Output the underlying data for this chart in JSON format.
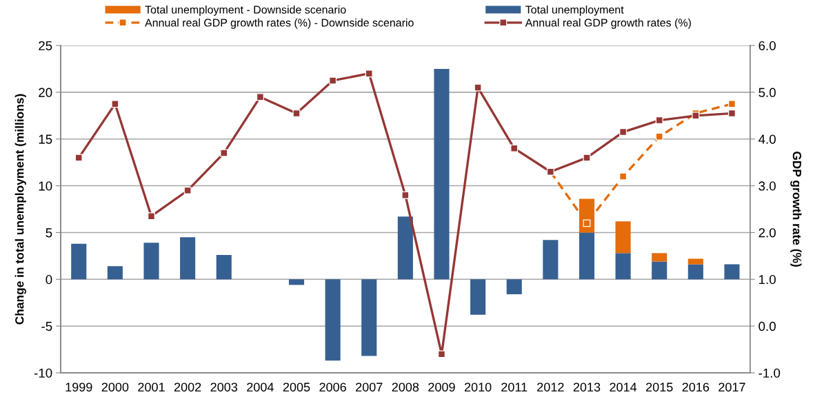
{
  "chart_data": {
    "type": "bar",
    "stacked": true,
    "categories": [
      "1999",
      "2000",
      "2001",
      "2002",
      "2003",
      "2004",
      "2005",
      "2006",
      "2007",
      "2008",
      "2009",
      "2010",
      "2011",
      "2012",
      "2013",
      "2014",
      "2015",
      "2016",
      "2017"
    ],
    "series": [
      {
        "name": "Total unemployment",
        "color": "#366092",
        "values": [
          3.8,
          1.4,
          3.9,
          4.5,
          2.6,
          0,
          -0.6,
          -8.7,
          -8.2,
          6.7,
          22.5,
          -3.8,
          -1.6,
          4.2,
          5.0,
          2.8,
          1.9,
          1.6,
          1.6
        ]
      },
      {
        "name": "Total unemployment - Downside scenario",
        "color": "#e46c0a",
        "values": [
          null,
          null,
          null,
          null,
          null,
          null,
          null,
          null,
          null,
          null,
          null,
          null,
          null,
          null,
          3.6,
          3.4,
          0.9,
          0.6,
          null
        ]
      },
      {
        "name": "Annual real GDP growth rates (%) - Downside scenario",
        "type": "line",
        "axis": "y2",
        "color": "#e46c0a",
        "marker": "square",
        "line_style": "dashed",
        "values": [
          null,
          null,
          null,
          null,
          null,
          null,
          null,
          null,
          null,
          null,
          null,
          null,
          null,
          3.3,
          2.2,
          3.2,
          4.05,
          4.55,
          4.75
        ]
      },
      {
        "name": "Annual real GDP growth rates (%)",
        "type": "line",
        "axis": "y2",
        "color": "#953735",
        "marker": "square",
        "line_style": "solid",
        "values": [
          3.6,
          4.75,
          2.35,
          2.9,
          3.7,
          4.9,
          4.55,
          5.25,
          5.4,
          2.8,
          -0.6,
          5.1,
          3.8,
          3.3,
          3.6,
          4.15,
          4.4,
          4.5,
          4.55
        ]
      }
    ],
    "ylabel": "Change in total unemployment (millions)",
    "y2label": "GDP growth rate (%)",
    "ylim": [
      -10,
      25
    ],
    "yticks": [
      -10,
      -5,
      0,
      5,
      10,
      15,
      20,
      25
    ],
    "y2lim": [
      -1,
      6
    ],
    "y2ticks": [
      {
        "value": -1,
        "label": "-1.0"
      },
      {
        "value": 0,
        "label": "0.0"
      },
      {
        "value": 1,
        "label": "1.0"
      },
      {
        "value": 2,
        "label": "2.0"
      },
      {
        "value": 3,
        "label": "3.0"
      },
      {
        "value": 4,
        "label": "4.0"
      },
      {
        "value": 5,
        "label": "5.0"
      },
      {
        "value": 6,
        "label": "6.0"
      }
    ],
    "grid": "y",
    "legend": "top"
  }
}
